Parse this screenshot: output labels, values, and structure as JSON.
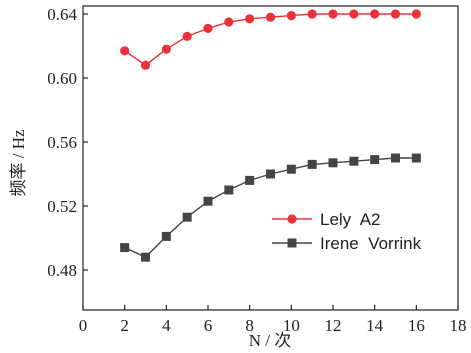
{
  "chart_data": {
    "type": "line",
    "xlabel": "N / 次",
    "ylabel": "频率 / Hz",
    "xlim": [
      0,
      18
    ],
    "ylim": [
      0.455,
      0.645
    ],
    "xticks": [
      "0",
      "2",
      "4",
      "6",
      "8",
      "10",
      "12",
      "14",
      "16",
      "18"
    ],
    "yticks": [
      "0.48",
      "0.52",
      "0.56",
      "0.60",
      "0.64"
    ],
    "grid": false,
    "legend_position": "middle-right",
    "series": [
      {
        "name": "Lely  A2",
        "color": "#e8323c",
        "marker": "circle",
        "x": [
          2,
          3,
          4,
          5,
          6,
          7,
          8,
          9,
          10,
          11,
          12,
          13,
          14,
          15,
          16
        ],
        "y": [
          0.617,
          0.608,
          0.618,
          0.626,
          0.631,
          0.635,
          0.637,
          0.638,
          0.639,
          0.64,
          0.64,
          0.64,
          0.64,
          0.64,
          0.64
        ]
      },
      {
        "name": "Irene  Vorrink",
        "color": "#444444",
        "marker": "square",
        "x": [
          2,
          3,
          4,
          5,
          6,
          7,
          8,
          9,
          10,
          11,
          12,
          13,
          14,
          15,
          16
        ],
        "y": [
          0.494,
          0.488,
          0.501,
          0.513,
          0.523,
          0.53,
          0.536,
          0.54,
          0.543,
          0.546,
          0.547,
          0.548,
          0.549,
          0.55,
          0.55
        ]
      }
    ]
  }
}
